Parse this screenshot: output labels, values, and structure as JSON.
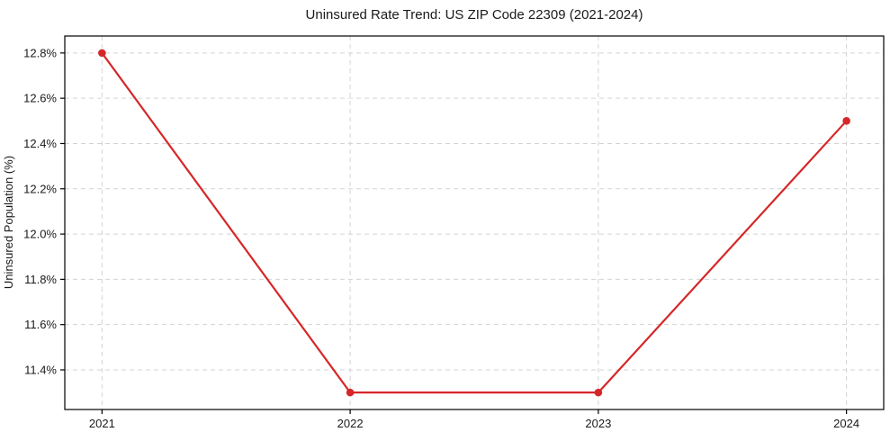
{
  "page": {
    "background_color": "#ffffff"
  },
  "chart_data": {
    "type": "line",
    "title": "Uninsured Rate Trend: US ZIP Code 22309 (2021-2024)",
    "xlabel": "",
    "ylabel": "Uninsured Population (%)",
    "categories": [
      2021,
      2022,
      2023,
      2024
    ],
    "x_tick_labels": [
      "2021",
      "2022",
      "2023",
      "2024"
    ],
    "series": [
      {
        "name": "uninsured-rate",
        "values": [
          12.8,
          11.3,
          11.3,
          12.5
        ],
        "color": "#d62728",
        "marker": "circle",
        "line_width": 2.2,
        "marker_radius": 4.3
      }
    ],
    "y_ticks": [
      11.4,
      11.6,
      11.8,
      12.0,
      12.2,
      12.4,
      12.6,
      12.8
    ],
    "y_tick_labels": [
      "11.4%",
      "11.6%",
      "11.8%",
      "12.0%",
      "12.2%",
      "12.4%",
      "12.6%",
      "12.8%"
    ],
    "xlim": [
      2020.85,
      2024.15
    ],
    "ylim": [
      11.225,
      12.875
    ],
    "grid": "on",
    "grid_style": "dashed",
    "grid_color": "#d3d3d3",
    "spine_color": "#000000",
    "tick_color": "#000000",
    "legend": "none"
  }
}
